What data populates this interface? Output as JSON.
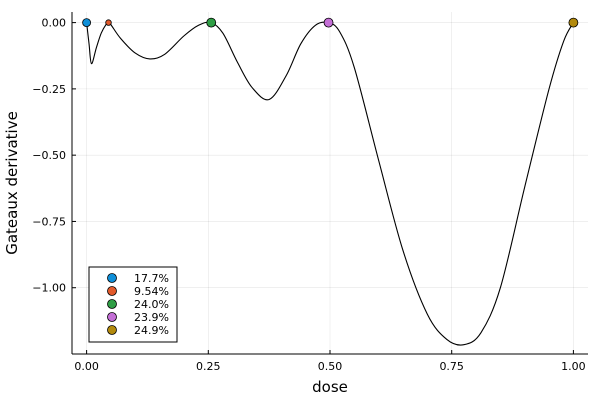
{
  "chart_data": {
    "type": "line",
    "xlabel": "dose",
    "ylabel": "Gateaux derivative",
    "xlim": [
      -0.03,
      1.03
    ],
    "ylim": [
      -1.25,
      0.04
    ],
    "xticks": [
      0.0,
      0.25,
      0.5,
      0.75,
      1.0
    ],
    "xtick_labels": [
      "0.00",
      "0.25",
      "0.50",
      "0.75",
      "1.00"
    ],
    "yticks": [
      0.0,
      -0.25,
      -0.5,
      -0.75,
      -1.0
    ],
    "ytick_labels": [
      "0.00",
      "−0.25",
      "−0.50",
      "−0.75",
      "−1.00"
    ],
    "grid": true,
    "legend_position": "bottom-left",
    "line": {
      "color": "#000000",
      "x": [
        0.0,
        0.005,
        0.01,
        0.02,
        0.03,
        0.04,
        0.045,
        0.05,
        0.07,
        0.1,
        0.13,
        0.16,
        0.2,
        0.23,
        0.256,
        0.28,
        0.31,
        0.34,
        0.375,
        0.41,
        0.44,
        0.47,
        0.497,
        0.52,
        0.55,
        0.6,
        0.65,
        0.7,
        0.74,
        0.775,
        0.81,
        0.85,
        0.9,
        0.95,
        0.98,
        1.0
      ],
      "y": [
        0.0,
        -0.08,
        -0.155,
        -0.095,
        -0.04,
        -0.007,
        0.0,
        -0.008,
        -0.06,
        -0.115,
        -0.137,
        -0.12,
        -0.05,
        -0.01,
        0.0,
        -0.04,
        -0.15,
        -0.245,
        -0.29,
        -0.2,
        -0.08,
        -0.01,
        0.0,
        -0.035,
        -0.17,
        -0.52,
        -0.86,
        -1.1,
        -1.195,
        -1.215,
        -1.17,
        -1.0,
        -0.62,
        -0.25,
        -0.07,
        0.0
      ]
    },
    "points": [
      {
        "label": "17.7%",
        "x": 0.0,
        "y": 0.0,
        "color": "#0e8fd9",
        "size": 4
      },
      {
        "label": "9.54%",
        "x": 0.045,
        "y": 0.0,
        "color": "#e25a2b",
        "size": 2.8
      },
      {
        "label": "24.0%",
        "x": 0.256,
        "y": 0.0,
        "color": "#2f9e45",
        "size": 4.5
      },
      {
        "label": "23.9%",
        "x": 0.497,
        "y": 0.0,
        "color": "#c46fd6",
        "size": 4.5
      },
      {
        "label": "24.9%",
        "x": 1.0,
        "y": 0.0,
        "color": "#b38a0d",
        "size": 4.5
      }
    ]
  }
}
